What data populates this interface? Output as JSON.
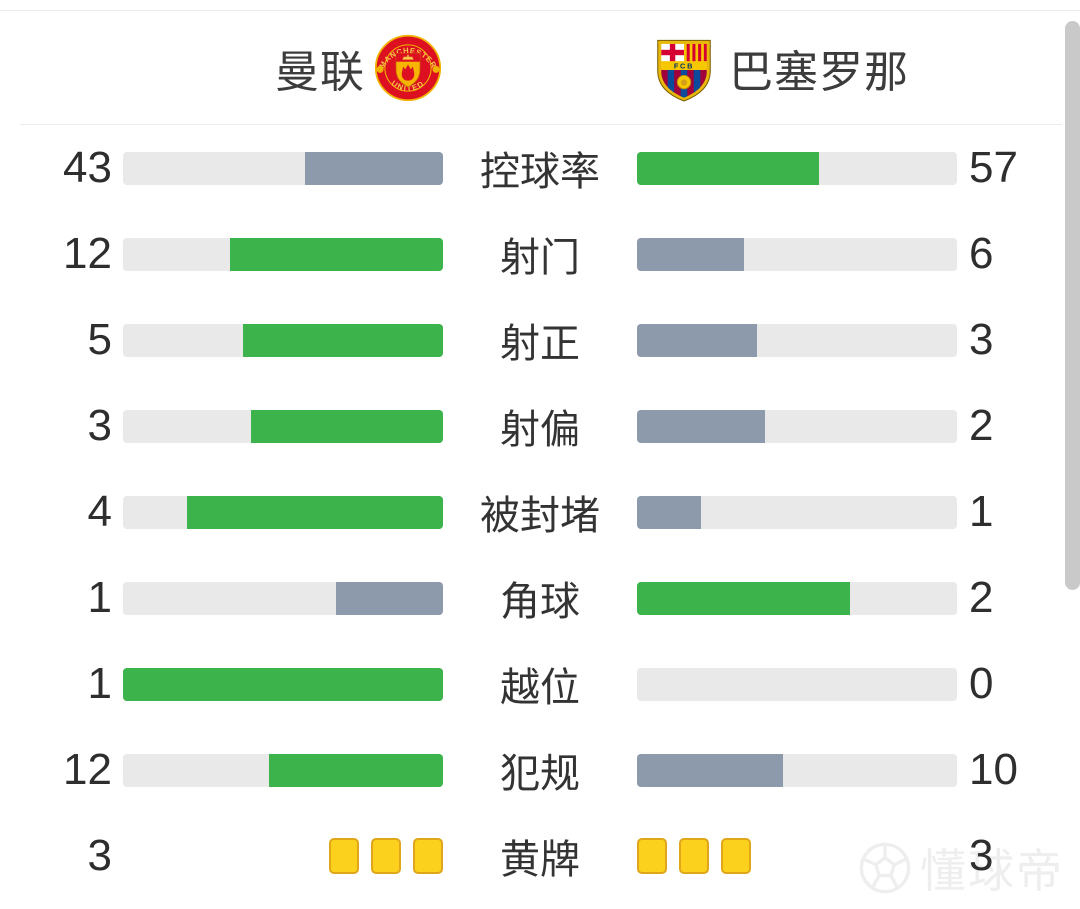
{
  "header": {
    "home_team": {
      "name": "曼联",
      "logo_text_top": "MANCHESTER",
      "logo_text_bottom": "UNITED"
    },
    "away_team": {
      "name": "巴塞罗那",
      "logo_text": "FCB"
    }
  },
  "colors": {
    "win_bar": "#3cb44b",
    "lose_bar": "#8d9aac",
    "track": "#e9e9e9",
    "yellow_card_fill": "#fcd11d",
    "yellow_card_border": "#dfa61a",
    "text": "#333333",
    "scrollbar_thumb": "#c9c9c9"
  },
  "rows": [
    {
      "label": "控球率",
      "left": {
        "value": "43",
        "pct": 43,
        "color": "gray"
      },
      "right": {
        "value": "57",
        "pct": 57,
        "color": "green"
      }
    },
    {
      "label": "射门",
      "left": {
        "value": "12",
        "pct": 66.7,
        "color": "green"
      },
      "right": {
        "value": "6",
        "pct": 33.3,
        "color": "gray"
      }
    },
    {
      "label": "射正",
      "left": {
        "value": "5",
        "pct": 62.5,
        "color": "green"
      },
      "right": {
        "value": "3",
        "pct": 37.5,
        "color": "gray"
      }
    },
    {
      "label": "射偏",
      "left": {
        "value": "3",
        "pct": 60,
        "color": "green"
      },
      "right": {
        "value": "2",
        "pct": 40,
        "color": "gray"
      }
    },
    {
      "label": "被封堵",
      "left": {
        "value": "4",
        "pct": 80,
        "color": "green"
      },
      "right": {
        "value": "1",
        "pct": 20,
        "color": "gray"
      }
    },
    {
      "label": "角球",
      "left": {
        "value": "1",
        "pct": 33.3,
        "color": "gray"
      },
      "right": {
        "value": "2",
        "pct": 66.7,
        "color": "green"
      }
    },
    {
      "label": "越位",
      "left": {
        "value": "1",
        "pct": 100,
        "color": "green"
      },
      "right": {
        "value": "0",
        "pct": 0,
        "color": "none"
      }
    },
    {
      "label": "犯规",
      "left": {
        "value": "12",
        "pct": 54.5,
        "color": "green"
      },
      "right": {
        "value": "10",
        "pct": 45.5,
        "color": "gray"
      }
    },
    {
      "label": "黄牌",
      "type": "cards",
      "left": {
        "value": "3",
        "cards": 3
      },
      "right": {
        "value": "3",
        "cards": 3
      }
    }
  ],
  "chart_data": {
    "type": "bar",
    "variant": "mirrored-horizontal-match-stats",
    "categories": [
      "控球率",
      "射门",
      "射正",
      "射偏",
      "被封堵",
      "角球",
      "越位",
      "犯规",
      "黄牌"
    ],
    "series": [
      {
        "name": "曼联",
        "values": [
          43,
          12,
          5,
          3,
          4,
          1,
          1,
          12,
          3
        ]
      },
      {
        "name": "巴塞罗那",
        "values": [
          57,
          6,
          3,
          2,
          1,
          2,
          0,
          10,
          3
        ]
      }
    ],
    "legend_position": "top (team names with crests)",
    "grid": false,
    "notes": "Each bar fill fraction = value/(home+away). Higher value rendered green (#3cb44b), lower rendered slate gray (#8d9aac), zero rendered empty track. 黄牌 row rendered as yellow card icons instead of bars."
  },
  "watermark": {
    "text": "懂球帝",
    "icon": "soccer-ball-icon"
  }
}
